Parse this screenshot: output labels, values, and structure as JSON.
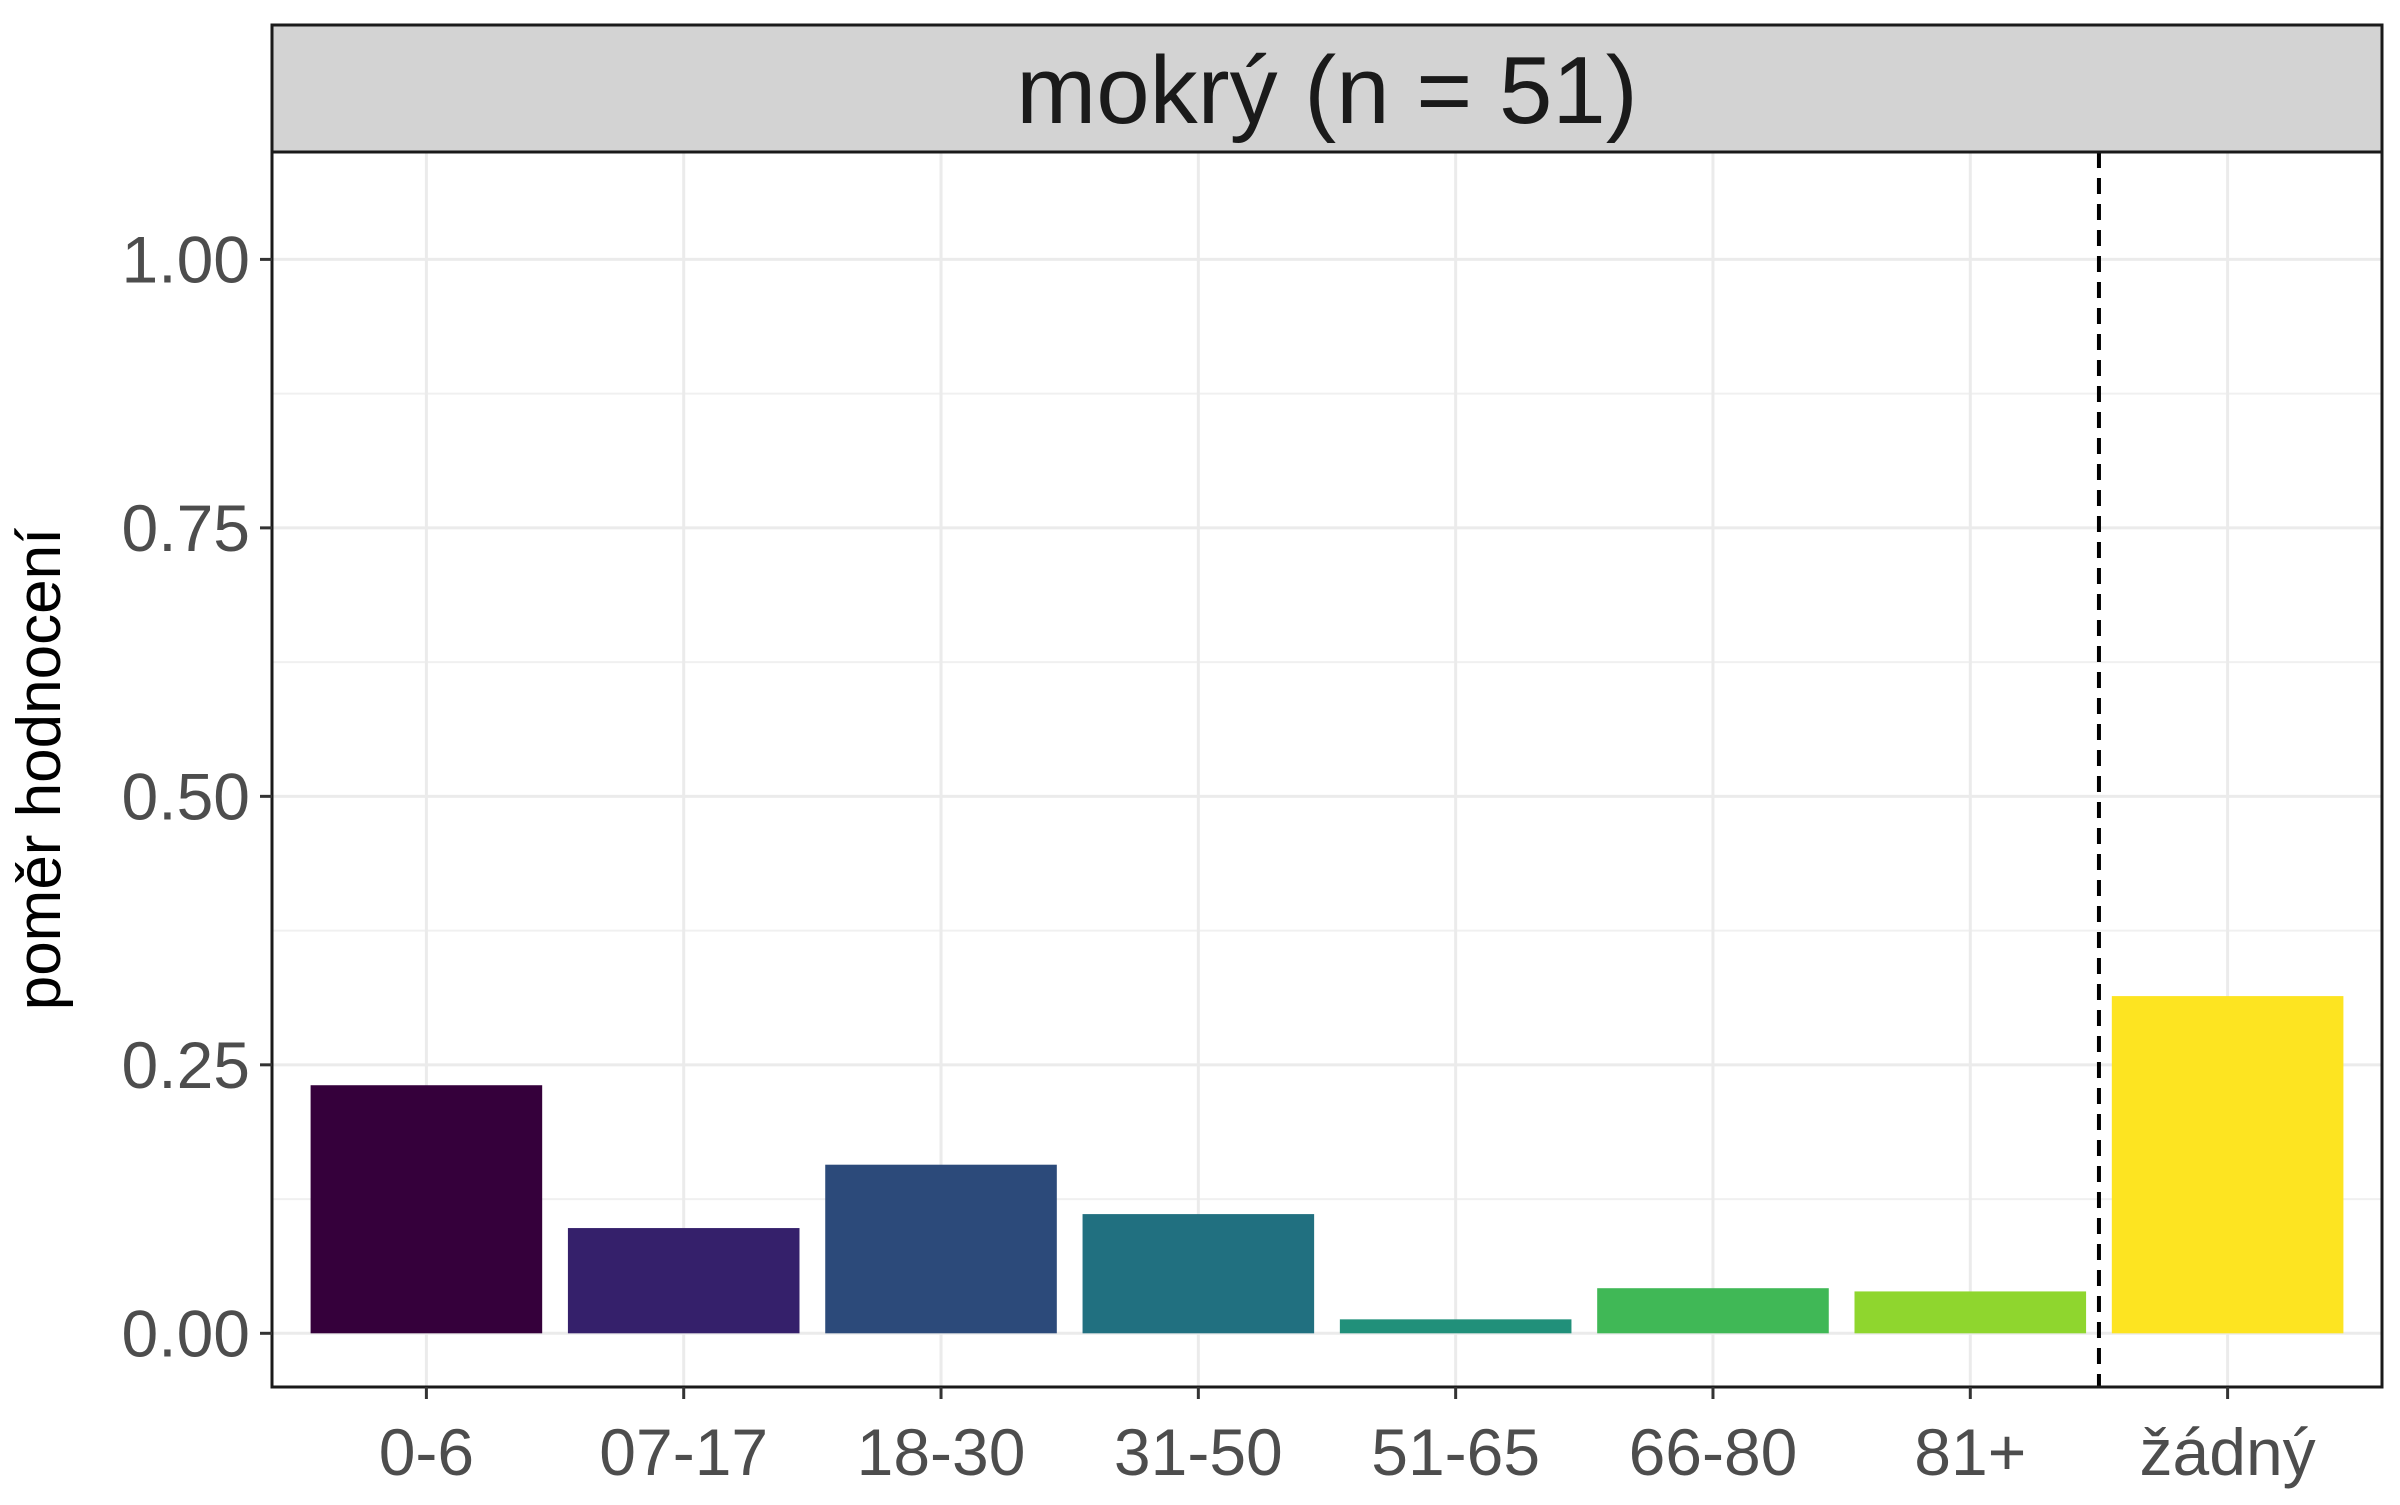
{
  "chart_data": {
    "type": "bar",
    "panel_title": "mokrý (n = 51)",
    "ylabel": "poměr hodnocení",
    "xlabel": "",
    "categories": [
      "0-6",
      "07-17",
      "18-30",
      "31-50",
      "51-65",
      "66-80",
      "81+",
      "žádný"
    ],
    "values": [
      0.231,
      0.098,
      0.157,
      0.111,
      0.013,
      0.042,
      0.039,
      0.314
    ],
    "colors": [
      "#35003b",
      "#35206b",
      "#2c4a7a",
      "#217080",
      "#21907a",
      "#40b856",
      "#8fd62e",
      "#fde421"
    ],
    "ylim": [
      -0.05,
      1.1
    ],
    "yticks": [
      0.0,
      0.25,
      0.5,
      0.75,
      1.0
    ],
    "ytick_labels": [
      "0.00",
      "0.25",
      "0.50",
      "0.75",
      "1.00"
    ],
    "separator": {
      "after_category_index": 6,
      "style": "dashed",
      "color": "#000000"
    },
    "grid": true,
    "legend": "none"
  }
}
